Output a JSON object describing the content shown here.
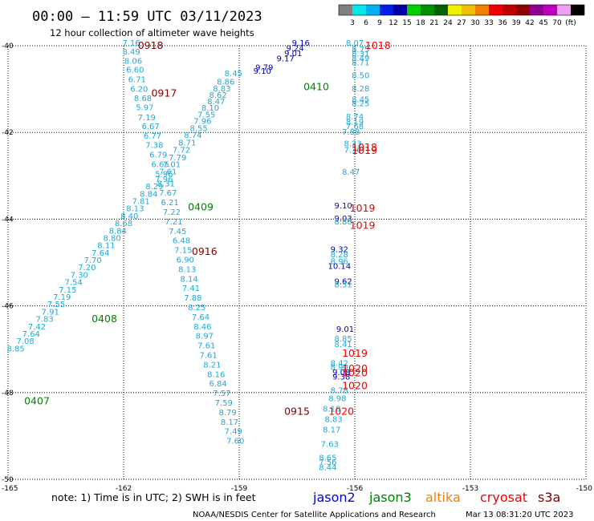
{
  "header": {
    "title": "00:00 – 11:59 UTC 03/11/2023",
    "subtitle": "12 hour collection of altimeter wave heights"
  },
  "scale": {
    "colors": [
      "#808080",
      "#00e8e8",
      "#00b0f0",
      "#0020e8",
      "#0000a0",
      "#00d000",
      "#009000",
      "#006000",
      "#f0f000",
      "#f0c000",
      "#f08000",
      "#f00000",
      "#c00000",
      "#900000",
      "#900090",
      "#c000c0",
      "#f0a0f0",
      "#000000"
    ],
    "labels": [
      "3",
      "6",
      "9",
      "12",
      "15",
      "18",
      "21",
      "24",
      "27",
      "30",
      "33",
      "36",
      "39",
      "42",
      "45",
      "70",
      "(ft)"
    ]
  },
  "axes": {
    "x_ticks": [
      "-165",
      "-162",
      "-159",
      "-156",
      "-153",
      "-150"
    ],
    "y_ticks": [
      "-40",
      "-42",
      "-44",
      "-46",
      "-48",
      "-50"
    ],
    "x_values": [
      -165,
      -162,
      -159,
      -156,
      -153,
      -150
    ],
    "y_values": [
      -40,
      -42,
      -44,
      -46,
      -48,
      -50
    ]
  },
  "colors": {
    "light_blue": "#1ca8d8",
    "dark_blue": "#0000b8",
    "green": "#008000",
    "dark_red": "#800000",
    "red": "#f00000"
  },
  "chart_data": {
    "type": "scatter",
    "xlim": [
      -165,
      -150
    ],
    "ylim": [
      -50,
      -40
    ],
    "grid": true,
    "series": [
      {
        "name": "jason2",
        "color_key": "dark_blue",
        "points": [
          {
            "x": -157.4,
            "y": -40.0,
            "v": "9.16"
          },
          {
            "x": -157.55,
            "y": -40.12,
            "v": "9.24"
          },
          {
            "x": -157.6,
            "y": -40.24,
            "v": "9.01"
          },
          {
            "x": -157.8,
            "y": -40.36,
            "v": "9.17"
          },
          {
            "x": -158.35,
            "y": -40.56,
            "v": "9.79"
          },
          {
            "x": -158.4,
            "y": -40.65,
            "v": "9.10"
          },
          {
            "x": -156.3,
            "y": -43.75,
            "v": "9.10"
          },
          {
            "x": -156.3,
            "y": -44.05,
            "v": "9.03"
          },
          {
            "x": -156.4,
            "y": -44.76,
            "v": "9.32"
          },
          {
            "x": -156.4,
            "y": -45.15,
            "v": "10.14"
          },
          {
            "x": -156.3,
            "y": -45.5,
            "v": "9.62"
          },
          {
            "x": -156.25,
            "y": -46.6,
            "v": "9.01"
          },
          {
            "x": -156.35,
            "y": -47.6,
            "v": "9.08"
          },
          {
            "x": -156.35,
            "y": -47.7,
            "v": "9.38"
          }
        ]
      },
      {
        "name": "jason3",
        "color_key": "light_blue",
        "points": [
          {
            "x": -161.8,
            "y": -40.0,
            "v": "7.16"
          },
          {
            "x": -161.8,
            "y": -40.2,
            "v": "8.49"
          },
          {
            "x": -161.75,
            "y": -40.42,
            "v": "8.06"
          },
          {
            "x": -161.7,
            "y": -40.62,
            "v": "6.60"
          },
          {
            "x": -161.65,
            "y": -40.84,
            "v": "6.71"
          },
          {
            "x": -161.6,
            "y": -41.06,
            "v": "6.20"
          },
          {
            "x": -161.5,
            "y": -41.28,
            "v": "8.68"
          },
          {
            "x": -161.45,
            "y": -41.49,
            "v": "5.97"
          },
          {
            "x": -161.4,
            "y": -41.72,
            "v": "7.19"
          },
          {
            "x": -161.3,
            "y": -41.92,
            "v": "6.67"
          },
          {
            "x": -161.25,
            "y": -42.14,
            "v": "6.77"
          },
          {
            "x": -161.2,
            "y": -42.36,
            "v": "7.38"
          },
          {
            "x": -161.1,
            "y": -42.58,
            "v": "6.79"
          },
          {
            "x": -161.05,
            "y": -42.8,
            "v": "6.65"
          },
          {
            "x": -160.95,
            "y": -43.02,
            "v": "5.96"
          },
          {
            "x": -160.9,
            "y": -43.24,
            "v": "8.31"
          },
          {
            "x": -160.85,
            "y": -43.46,
            "v": "7.67"
          },
          {
            "x": -160.8,
            "y": -43.68,
            "v": "6.21"
          },
          {
            "x": -160.75,
            "y": -43.9,
            "v": "7.22"
          },
          {
            "x": -160.7,
            "y": -44.12,
            "v": "7.21"
          },
          {
            "x": -160.6,
            "y": -44.34,
            "v": "7.45"
          },
          {
            "x": -160.5,
            "y": -44.56,
            "v": "6.48"
          },
          {
            "x": -160.45,
            "y": -44.78,
            "v": "7.15"
          },
          {
            "x": -160.4,
            "y": -45.0,
            "v": "6.90"
          },
          {
            "x": -160.35,
            "y": -45.22,
            "v": "8.13"
          },
          {
            "x": -160.3,
            "y": -45.44,
            "v": "8.14"
          },
          {
            "x": -160.25,
            "y": -45.66,
            "v": "7.41"
          },
          {
            "x": -160.2,
            "y": -45.88,
            "v": "7.88"
          },
          {
            "x": -160.1,
            "y": -46.1,
            "v": "8.25"
          },
          {
            "x": -160.0,
            "y": -46.32,
            "v": "7.64"
          },
          {
            "x": -159.95,
            "y": -46.54,
            "v": "8.46"
          },
          {
            "x": -159.9,
            "y": -46.76,
            "v": "8.97"
          },
          {
            "x": -159.85,
            "y": -46.98,
            "v": "7.61"
          },
          {
            "x": -159.8,
            "y": -47.2,
            "v": "7.61"
          },
          {
            "x": -159.7,
            "y": -47.42,
            "v": "8.21"
          },
          {
            "x": -159.6,
            "y": -47.64,
            "v": "8.16"
          },
          {
            "x": -159.55,
            "y": -47.86,
            "v": "6.84"
          },
          {
            "x": -159.45,
            "y": -48.08,
            "v": "7.57"
          },
          {
            "x": -159.4,
            "y": -48.3,
            "v": "7.59"
          },
          {
            "x": -159.3,
            "y": -48.52,
            "v": "8.79"
          },
          {
            "x": -159.25,
            "y": -48.74,
            "v": "8.17"
          },
          {
            "x": -159.15,
            "y": -48.96,
            "v": "7.49"
          },
          {
            "x": -159.1,
            "y": -49.18,
            "v": "7.60"
          },
          {
            "x": -159.15,
            "y": -40.7,
            "v": "8.45"
          },
          {
            "x": -159.35,
            "y": -40.9,
            "v": "8.86"
          },
          {
            "x": -159.45,
            "y": -41.05,
            "v": "8.83"
          },
          {
            "x": -159.55,
            "y": -41.2,
            "v": "8.62"
          },
          {
            "x": -159.6,
            "y": -41.35,
            "v": "8.47"
          },
          {
            "x": -159.75,
            "y": -41.5,
            "v": "8.10"
          },
          {
            "x": -159.85,
            "y": -41.65,
            "v": "7.55"
          },
          {
            "x": -159.95,
            "y": -41.8,
            "v": "7.96"
          },
          {
            "x": -160.05,
            "y": -41.97,
            "v": "8.55"
          },
          {
            "x": -160.2,
            "y": -42.13,
            "v": "8.74"
          },
          {
            "x": -160.35,
            "y": -42.3,
            "v": "8.71"
          },
          {
            "x": -160.5,
            "y": -42.47,
            "v": "7.72"
          },
          {
            "x": -160.6,
            "y": -42.64,
            "v": "7.79"
          },
          {
            "x": -160.75,
            "y": -42.8,
            "v": "7.01"
          },
          {
            "x": -160.85,
            "y": -42.97,
            "v": "7.61"
          },
          {
            "x": -160.95,
            "y": -43.14,
            "v": "7.96"
          },
          {
            "x": -161.2,
            "y": -43.31,
            "v": "8.29"
          },
          {
            "x": -161.35,
            "y": -43.48,
            "v": "8.84"
          },
          {
            "x": -161.55,
            "y": -43.65,
            "v": "7.81"
          },
          {
            "x": -161.7,
            "y": -43.82,
            "v": "8.13"
          },
          {
            "x": -161.85,
            "y": -43.99,
            "v": "8.40"
          },
          {
            "x": -162.0,
            "y": -44.16,
            "v": "8.68"
          },
          {
            "x": -162.15,
            "y": -44.33,
            "v": "8.84"
          },
          {
            "x": -162.3,
            "y": -44.5,
            "v": "8.80"
          },
          {
            "x": -162.45,
            "y": -44.67,
            "v": "8.11"
          },
          {
            "x": -162.6,
            "y": -44.84,
            "v": "7.64"
          },
          {
            "x": -162.8,
            "y": -45.01,
            "v": "7.70"
          },
          {
            "x": -162.95,
            "y": -45.18,
            "v": "7.20"
          },
          {
            "x": -163.15,
            "y": -45.35,
            "v": "7.30"
          },
          {
            "x": -163.3,
            "y": -45.52,
            "v": "7.54"
          },
          {
            "x": -163.45,
            "y": -45.69,
            "v": "7.15"
          },
          {
            "x": -163.6,
            "y": -45.86,
            "v": "7.19"
          },
          {
            "x": -163.75,
            "y": -46.03,
            "v": "7.55"
          },
          {
            "x": -163.9,
            "y": -46.2,
            "v": "7.91"
          },
          {
            "x": -164.05,
            "y": -46.37,
            "v": "7.83"
          },
          {
            "x": -164.25,
            "y": -46.54,
            "v": "7.42"
          },
          {
            "x": -164.4,
            "y": -46.71,
            "v": "7.64"
          },
          {
            "x": -164.55,
            "y": -46.88,
            "v": "7.08"
          },
          {
            "x": -164.8,
            "y": -47.05,
            "v": "8.85"
          },
          {
            "x": -156.0,
            "y": -40.0,
            "v": "8.07"
          },
          {
            "x": -155.85,
            "y": -40.15,
            "v": "8.75"
          },
          {
            "x": -155.85,
            "y": -40.25,
            "v": "8.31"
          },
          {
            "x": -155.85,
            "y": -40.35,
            "v": "8.49"
          },
          {
            "x": -155.85,
            "y": -40.45,
            "v": "8.71"
          },
          {
            "x": -155.85,
            "y": -40.75,
            "v": "8.50"
          },
          {
            "x": -155.85,
            "y": -41.05,
            "v": "8.28"
          },
          {
            "x": -155.85,
            "y": -41.3,
            "v": "8.45"
          },
          {
            "x": -155.85,
            "y": -41.4,
            "v": "8.25"
          },
          {
            "x": -156.0,
            "y": -41.7,
            "v": "8.74"
          },
          {
            "x": -156.0,
            "y": -41.82,
            "v": "8.19"
          },
          {
            "x": -156.0,
            "y": -41.92,
            "v": "7.68"
          },
          {
            "x": -156.1,
            "y": -42.05,
            "v": "7.88"
          },
          {
            "x": -156.05,
            "y": -42.32,
            "v": "8.23"
          },
          {
            "x": -156.05,
            "y": -42.47,
            "v": "7.30"
          },
          {
            "x": -156.1,
            "y": -42.98,
            "v": "8.47"
          },
          {
            "x": -156.3,
            "y": -44.12,
            "v": "8.86"
          },
          {
            "x": -156.4,
            "y": -44.88,
            "v": "8.28"
          },
          {
            "x": -156.4,
            "y": -45.04,
            "v": "8.96"
          },
          {
            "x": -156.3,
            "y": -45.57,
            "v": "8.31"
          },
          {
            "x": -156.3,
            "y": -46.82,
            "v": "8.85"
          },
          {
            "x": -156.3,
            "y": -46.95,
            "v": "8.41"
          },
          {
            "x": -156.4,
            "y": -47.38,
            "v": "8.42"
          },
          {
            "x": -156.4,
            "y": -47.48,
            "v": "8.90"
          },
          {
            "x": -156.4,
            "y": -48.01,
            "v": "8.78"
          },
          {
            "x": -156.45,
            "y": -48.2,
            "v": "8.98"
          },
          {
            "x": -156.6,
            "y": -48.44,
            "v": "8.18"
          },
          {
            "x": -156.55,
            "y": -48.68,
            "v": "8.83"
          },
          {
            "x": -156.6,
            "y": -48.92,
            "v": "8.17"
          },
          {
            "x": -156.65,
            "y": -49.25,
            "v": "7.63"
          },
          {
            "x": -156.7,
            "y": -49.57,
            "v": "8.65"
          },
          {
            "x": -156.7,
            "y": -49.67,
            "v": "7.56"
          },
          {
            "x": -156.7,
            "y": -49.79,
            "v": "8.44"
          }
        ]
      }
    ],
    "time_labels": [
      {
        "x": -161.3,
        "y": -40.0,
        "v": "0918",
        "color_key": "dark_red"
      },
      {
        "x": -160.95,
        "y": -41.1,
        "v": "0917",
        "color_key": "dark_red"
      },
      {
        "x": -159.9,
        "y": -44.75,
        "v": "0916",
        "color_key": "dark_red"
      },
      {
        "x": -157.5,
        "y": -48.44,
        "v": "0915",
        "color_key": "dark_red"
      },
      {
        "x": -157.0,
        "y": -40.95,
        "v": "0410",
        "color_key": "green"
      },
      {
        "x": -160.0,
        "y": -43.72,
        "v": "0409",
        "color_key": "green"
      },
      {
        "x": -162.5,
        "y": -46.3,
        "v": "0408",
        "color_key": "green"
      },
      {
        "x": -164.25,
        "y": -48.2,
        "v": "0407",
        "color_key": "green"
      },
      {
        "x": -155.4,
        "y": -40.0,
        "v": "1018",
        "color_key": "red"
      },
      {
        "x": -155.75,
        "y": -42.35,
        "v": "1018",
        "color_key": "red"
      },
      {
        "x": -155.75,
        "y": -42.42,
        "v": "1019",
        "color_key": "red"
      },
      {
        "x": -155.8,
        "y": -43.75,
        "v": "1019",
        "color_key": "red"
      },
      {
        "x": -155.8,
        "y": -44.15,
        "v": "1019",
        "color_key": "red"
      },
      {
        "x": -156.0,
        "y": -47.1,
        "v": "1019",
        "color_key": "red"
      },
      {
        "x": -156.0,
        "y": -47.45,
        "v": "1020",
        "color_key": "red"
      },
      {
        "x": -156.0,
        "y": -47.55,
        "v": "1020",
        "color_key": "red"
      },
      {
        "x": -156.0,
        "y": -47.85,
        "v": "1020",
        "color_key": "red"
      },
      {
        "x": -156.35,
        "y": -48.44,
        "v": "1020",
        "color_key": "red"
      }
    ]
  },
  "footer": {
    "note": "note: 1) Time is in UTC; 2) SWH is in feet",
    "legend": [
      {
        "label": "jason2",
        "color": "#0000e0"
      },
      {
        "label": "jason3",
        "color": "#008000"
      },
      {
        "label": "altika",
        "color": "#f08000"
      },
      {
        "label": "cryosat",
        "color": "#f00000"
      },
      {
        "label": "s3a",
        "color": "#800000"
      }
    ],
    "credit": "NOAA/NESDIS Center for Satellite Applications and Research",
    "timestamp": "Mar 13 08:31:20 UTC 2023"
  }
}
